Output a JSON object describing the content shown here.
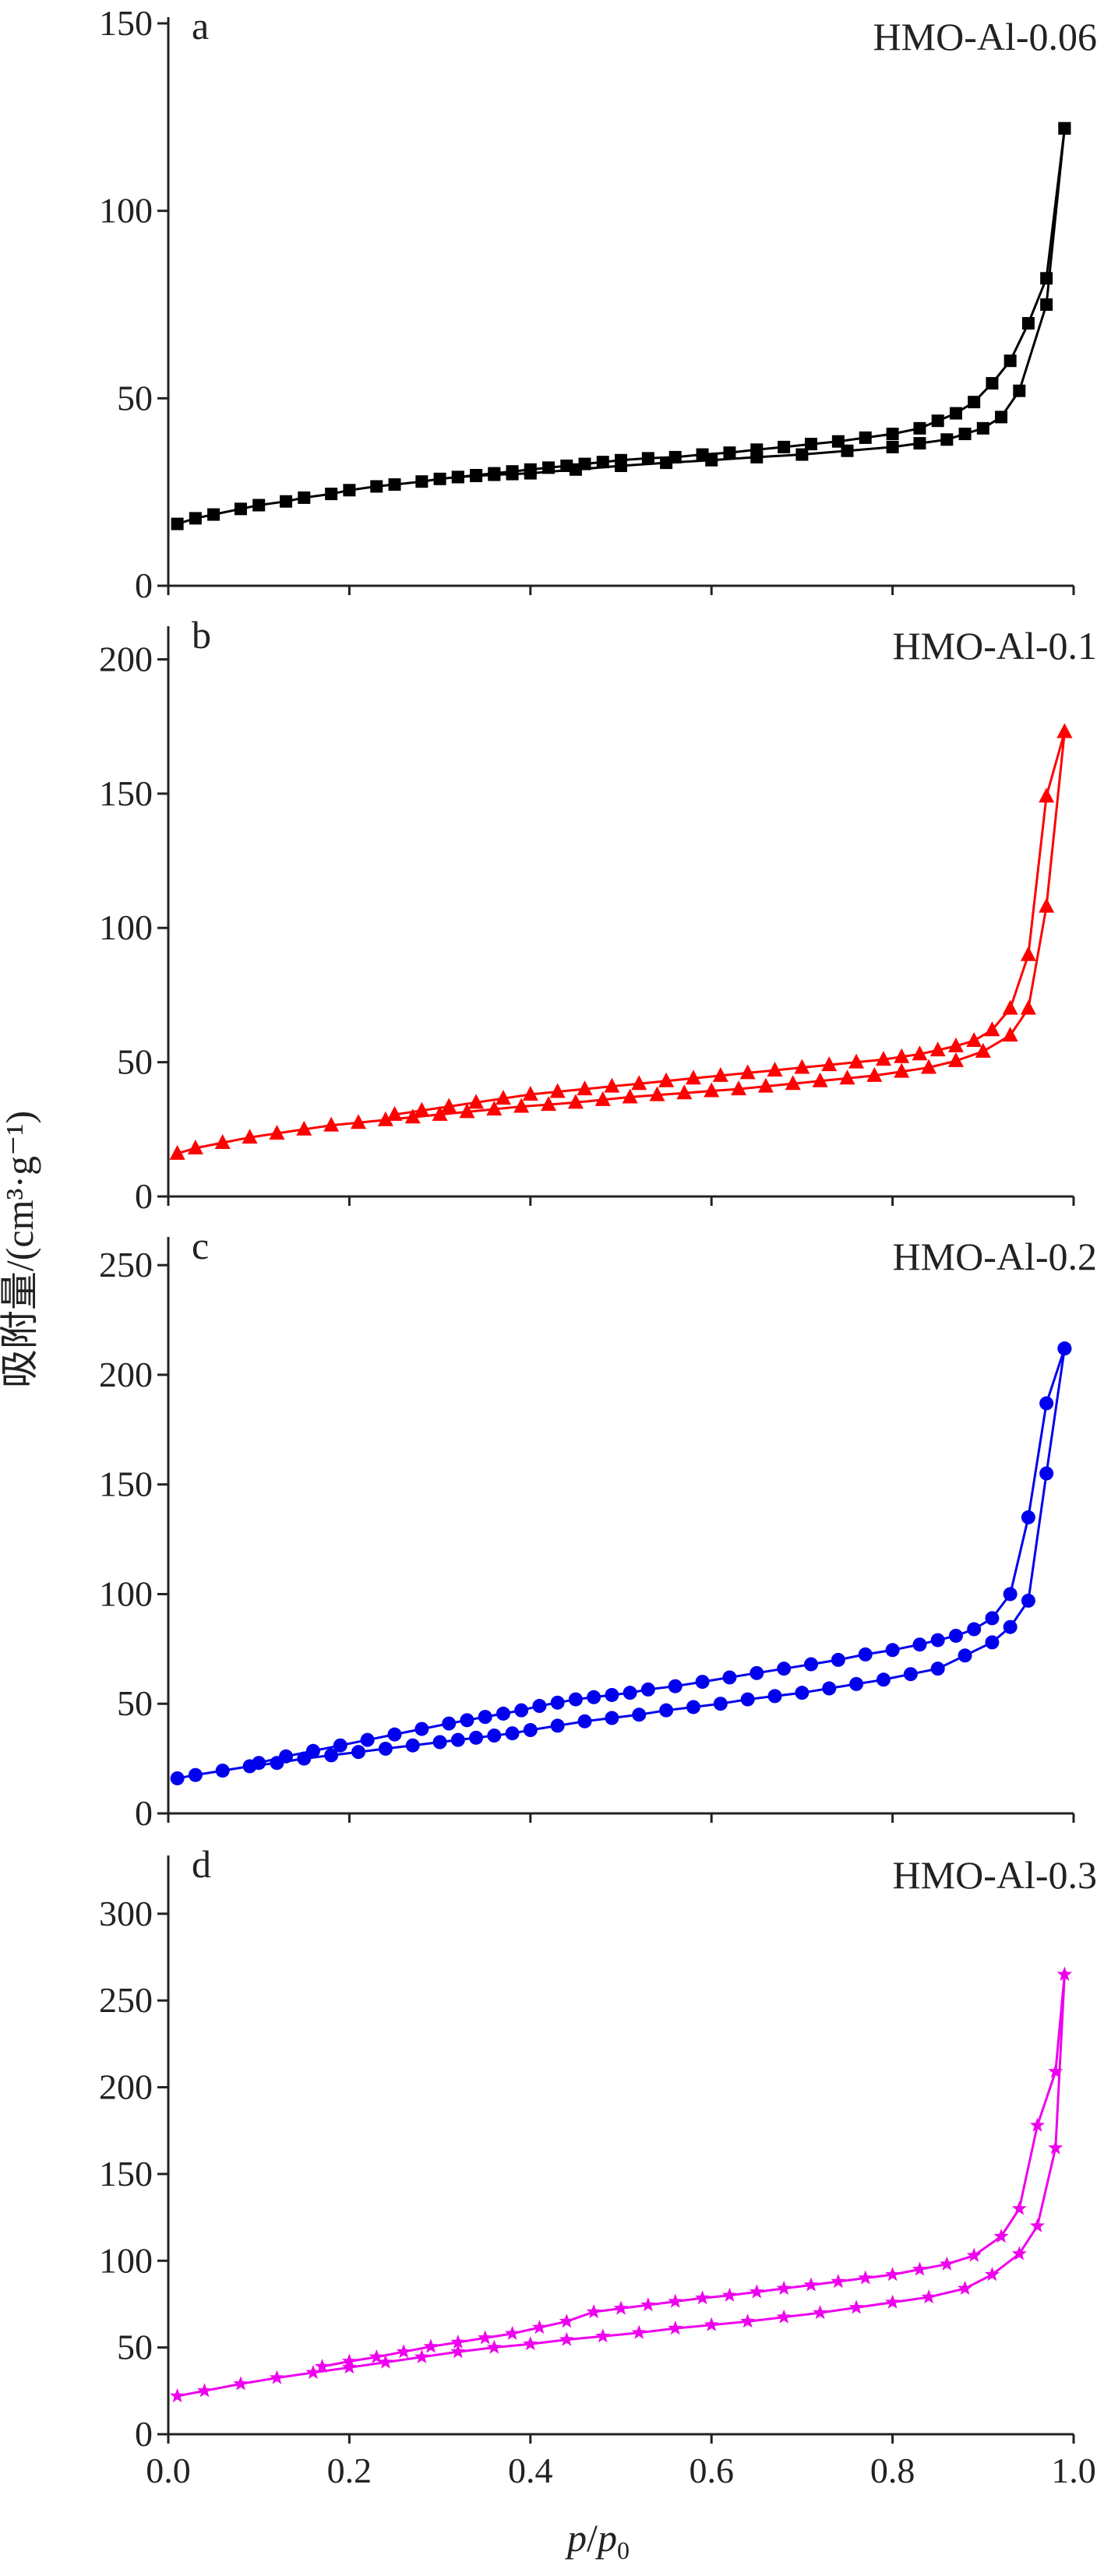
{
  "figure": {
    "ylabel": "吸附量/(cm³·g⁻¹)",
    "xlabel": "p/p0",
    "xlabel_parts": {
      "p": "p",
      "slash": "/",
      "p0": "p",
      "sub": "0"
    },
    "x_ticks": [
      "0.0",
      "0.2",
      "0.4",
      "0.6",
      "0.8",
      "1.0"
    ]
  },
  "chart_data": [
    {
      "type": "line",
      "panel": "a",
      "label": "HMO-Al-0.06",
      "color": "#000000",
      "marker": "square",
      "xlim": [
        0,
        1
      ],
      "ylim": [
        0,
        150
      ],
      "yticks": [
        0,
        50,
        100,
        150
      ],
      "series": [
        {
          "role": "adsorption",
          "x": [
            0.01,
            0.03,
            0.05,
            0.08,
            0.1,
            0.13,
            0.15,
            0.18,
            0.2,
            0.23,
            0.25,
            0.28,
            0.3,
            0.32,
            0.34,
            0.36,
            0.38,
            0.4,
            0.45,
            0.5,
            0.55,
            0.6,
            0.65,
            0.7,
            0.75,
            0.8,
            0.83,
            0.86,
            0.88,
            0.9,
            0.92,
            0.94,
            0.97,
            0.99
          ],
          "y": [
            16.5,
            18,
            19,
            20.5,
            21.5,
            22.5,
            23.5,
            24.5,
            25.5,
            26.5,
            27,
            27.8,
            28.5,
            29,
            29.3,
            29.6,
            29.8,
            30,
            31,
            32,
            32.8,
            33.5,
            34.3,
            35,
            36,
            37,
            38,
            39,
            40.5,
            42,
            45,
            52,
            75,
            122
          ]
        },
        {
          "role": "desorption",
          "x": [
            0.99,
            0.97,
            0.95,
            0.93,
            0.91,
            0.89,
            0.87,
            0.85,
            0.83,
            0.8,
            0.77,
            0.74,
            0.71,
            0.68,
            0.65,
            0.62,
            0.59,
            0.56,
            0.53,
            0.5,
            0.48,
            0.46,
            0.44,
            0.42,
            0.4,
            0.38,
            0.36,
            0.34,
            0.32
          ],
          "y": [
            122,
            82,
            70,
            60,
            54,
            49,
            46,
            44,
            42,
            40.5,
            39.5,
            38.5,
            37.8,
            37,
            36.3,
            35.5,
            35,
            34.3,
            34,
            33.5,
            33,
            32.5,
            32,
            31.5,
            31,
            30.5,
            30,
            29.5,
            29
          ]
        }
      ]
    },
    {
      "type": "line",
      "panel": "b",
      "label": "HMO-Al-0.1",
      "color": "#ff0000",
      "marker": "triangle",
      "xlim": [
        0,
        1
      ],
      "ylim": [
        0,
        210
      ],
      "yticks": [
        0,
        50,
        100,
        150,
        200
      ],
      "series": [
        {
          "role": "adsorption",
          "x": [
            0.01,
            0.03,
            0.06,
            0.09,
            0.12,
            0.15,
            0.18,
            0.21,
            0.24,
            0.27,
            0.3,
            0.33,
            0.36,
            0.39,
            0.42,
            0.45,
            0.48,
            0.51,
            0.54,
            0.57,
            0.6,
            0.63,
            0.66,
            0.69,
            0.72,
            0.75,
            0.78,
            0.81,
            0.84,
            0.87,
            0.9,
            0.93,
            0.95,
            0.97,
            0.99
          ],
          "y": [
            16,
            18,
            20,
            22,
            23.5,
            25,
            26.5,
            27.5,
            28.5,
            29.5,
            30.5,
            31.5,
            32.5,
            33.5,
            34.2,
            35,
            36,
            37,
            37.8,
            38.5,
            39.3,
            40,
            41,
            42,
            43,
            44,
            45,
            46.5,
            48,
            50.5,
            54,
            60,
            70,
            108,
            173
          ]
        },
        {
          "role": "desorption",
          "x": [
            0.99,
            0.97,
            0.95,
            0.93,
            0.91,
            0.89,
            0.87,
            0.85,
            0.83,
            0.81,
            0.79,
            0.76,
            0.73,
            0.7,
            0.67,
            0.64,
            0.61,
            0.58,
            0.55,
            0.52,
            0.49,
            0.46,
            0.43,
            0.4,
            0.37,
            0.34,
            0.31,
            0.28,
            0.25
          ],
          "y": [
            173,
            149,
            90,
            70,
            62,
            58,
            56,
            54.5,
            53,
            52,
            51,
            50,
            49,
            48,
            47,
            46,
            45,
            44,
            43,
            42,
            41,
            40,
            39,
            38,
            36.5,
            35,
            33.5,
            32,
            30.5
          ]
        }
      ]
    },
    {
      "type": "line",
      "panel": "c",
      "label": "HMO-Al-0.2",
      "color": "#0000ee",
      "marker": "circle",
      "xlim": [
        0,
        1
      ],
      "ylim": [
        0,
        260
      ],
      "yticks": [
        0,
        50,
        100,
        150,
        200,
        250
      ],
      "series": [
        {
          "role": "adsorption",
          "x": [
            0.01,
            0.03,
            0.06,
            0.09,
            0.12,
            0.15,
            0.18,
            0.21,
            0.24,
            0.27,
            0.3,
            0.32,
            0.34,
            0.36,
            0.38,
            0.4,
            0.43,
            0.46,
            0.49,
            0.52,
            0.55,
            0.58,
            0.61,
            0.64,
            0.67,
            0.7,
            0.73,
            0.76,
            0.79,
            0.82,
            0.85,
            0.88,
            0.91,
            0.93,
            0.95,
            0.97,
            0.99
          ],
          "y": [
            16,
            17.5,
            19.5,
            21.5,
            23,
            25,
            26.5,
            28,
            29.5,
            31,
            32.5,
            33.5,
            34.5,
            35.5,
            36.5,
            38,
            40,
            42,
            43.5,
            45,
            47,
            48.5,
            50,
            52,
            53.5,
            55,
            57,
            59,
            61,
            63.5,
            66,
            72,
            78,
            85,
            97,
            155,
            212
          ]
        },
        {
          "role": "desorption",
          "x": [
            0.99,
            0.97,
            0.95,
            0.93,
            0.91,
            0.89,
            0.87,
            0.85,
            0.83,
            0.8,
            0.77,
            0.74,
            0.71,
            0.68,
            0.65,
            0.62,
            0.59,
            0.56,
            0.53,
            0.51,
            0.49,
            0.47,
            0.45,
            0.43,
            0.41,
            0.39,
            0.37,
            0.35,
            0.33,
            0.31,
            0.28,
            0.25,
            0.22,
            0.19,
            0.16,
            0.13,
            0.1
          ],
          "y": [
            212,
            187,
            135,
            100,
            89,
            84,
            81,
            79,
            77,
            74.5,
            72.5,
            70,
            68,
            66,
            64,
            62,
            60,
            58,
            56.5,
            55,
            54,
            53,
            52,
            50.5,
            49,
            47,
            45.5,
            44,
            42.5,
            41,
            38.5,
            36,
            33.5,
            31,
            28.5,
            26,
            23
          ]
        }
      ]
    },
    {
      "type": "line",
      "panel": "d",
      "label": "HMO-Al-0.3",
      "color": "#ee00ee",
      "marker": "star",
      "xlim": [
        0,
        1
      ],
      "ylim": [
        0,
        330
      ],
      "yticks": [
        0,
        50,
        100,
        150,
        200,
        250,
        300
      ],
      "series": [
        {
          "role": "adsorption",
          "x": [
            0.01,
            0.04,
            0.08,
            0.12,
            0.16,
            0.2,
            0.24,
            0.28,
            0.32,
            0.36,
            0.4,
            0.44,
            0.48,
            0.52,
            0.56,
            0.6,
            0.64,
            0.68,
            0.72,
            0.76,
            0.8,
            0.84,
            0.88,
            0.91,
            0.94,
            0.96,
            0.98,
            0.99
          ],
          "y": [
            22,
            25,
            29,
            32.5,
            35.5,
            38.5,
            41.5,
            44.5,
            47.5,
            50,
            52,
            54.5,
            56.5,
            58.5,
            61,
            63,
            65,
            67.5,
            70,
            73,
            76,
            79,
            84,
            92,
            104,
            120,
            165,
            265
          ]
        },
        {
          "role": "desorption",
          "x": [
            0.99,
            0.98,
            0.96,
            0.94,
            0.92,
            0.89,
            0.86,
            0.83,
            0.8,
            0.77,
            0.74,
            0.71,
            0.68,
            0.65,
            0.62,
            0.59,
            0.56,
            0.53,
            0.5,
            0.47,
            0.44,
            0.41,
            0.38,
            0.35,
            0.32,
            0.29,
            0.26,
            0.23,
            0.2,
            0.17
          ],
          "y": [
            265,
            209,
            178,
            130,
            114,
            103,
            98,
            95,
            92,
            90,
            88,
            86,
            84,
            82,
            80,
            78.5,
            76.5,
            74.5,
            72.5,
            70.5,
            65,
            61.5,
            58,
            55.5,
            53,
            50.5,
            47.5,
            44.5,
            42,
            39
          ]
        }
      ]
    }
  ]
}
